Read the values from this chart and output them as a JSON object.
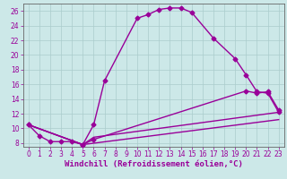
{
  "xlabel": "Windchill (Refroidissement éolien,°C)",
  "bg_color": "#cce8e8",
  "line_color": "#990099",
  "grid_color": "#aacccc",
  "axis_color": "#666666",
  "xlim": [
    -0.5,
    23.5
  ],
  "ylim": [
    7.5,
    27
  ],
  "xticks": [
    0,
    1,
    2,
    3,
    4,
    5,
    6,
    7,
    8,
    9,
    10,
    11,
    12,
    13,
    14,
    15,
    16,
    17,
    18,
    19,
    20,
    21,
    22,
    23
  ],
  "yticks": [
    8,
    10,
    12,
    14,
    16,
    18,
    20,
    22,
    24,
    26
  ],
  "line1_x": [
    0,
    1,
    2,
    3,
    4,
    5,
    6,
    7,
    10,
    11,
    12,
    13,
    14,
    15,
    17,
    19,
    20,
    21,
    22,
    23
  ],
  "line1_y": [
    10.5,
    9.0,
    8.2,
    8.2,
    8.2,
    7.8,
    10.5,
    16.5,
    25.0,
    25.5,
    26.2,
    26.4,
    26.4,
    25.8,
    22.3,
    19.5,
    17.3,
    15.0,
    14.8,
    12.2
  ],
  "line2_x": [
    0,
    5,
    6,
    23
  ],
  "line2_y": [
    10.5,
    7.8,
    8.8,
    12.2
  ],
  "line3_x": [
    0,
    5,
    6,
    20,
    21,
    22,
    23
  ],
  "line3_y": [
    10.5,
    7.8,
    8.5,
    15.1,
    14.8,
    15.0,
    12.5
  ],
  "line4_x": [
    0,
    5,
    23
  ],
  "line4_y": [
    10.5,
    7.8,
    11.2
  ],
  "marker": "D",
  "marker_size": 2.5,
  "line_width": 1.0,
  "xlabel_fontsize": 6.5,
  "tick_fontsize": 5.5
}
